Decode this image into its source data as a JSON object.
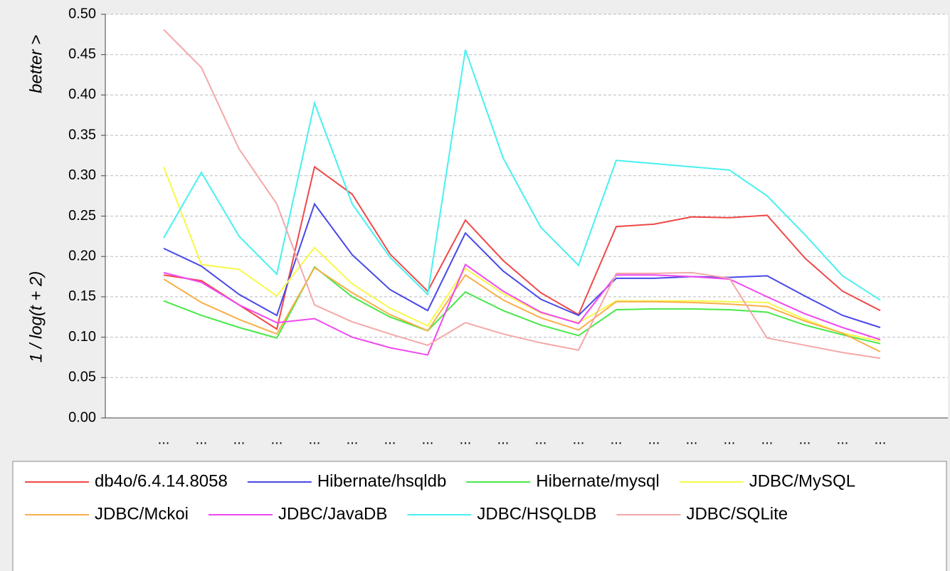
{
  "chart_data": {
    "type": "line",
    "y_label": "1  /  log(t + 2)",
    "annotations": [
      "better >"
    ],
    "categories": [
      "...",
      "...",
      "...",
      "...",
      "...",
      "...",
      "...",
      "...",
      "...",
      "...",
      "...",
      "...",
      "...",
      "...",
      "...",
      "...",
      "...",
      "...",
      "...",
      "..."
    ],
    "series": [
      {
        "name": "db4o/6.4.14.8058",
        "color": "#f04848",
        "values": [
          0.177,
          0.17,
          0.14,
          0.11,
          0.311,
          0.277,
          0.203,
          0.157,
          0.245,
          0.195,
          0.155,
          0.128,
          0.237,
          0.24,
          0.249,
          0.248,
          0.251,
          0.198,
          0.157,
          0.133
        ]
      },
      {
        "name": "Hibernate/hsqldb",
        "color": "#4848e8",
        "values": [
          0.21,
          0.188,
          0.153,
          0.127,
          0.265,
          0.202,
          0.159,
          0.133,
          0.229,
          0.182,
          0.147,
          0.127,
          0.173,
          0.173,
          0.175,
          0.174,
          0.176,
          0.151,
          0.127,
          0.112
        ]
      },
      {
        "name": "Hibernate/mysql",
        "color": "#48e848",
        "values": [
          0.145,
          0.127,
          0.112,
          0.099,
          0.187,
          0.15,
          0.125,
          0.108,
          0.156,
          0.133,
          0.115,
          0.102,
          0.134,
          0.135,
          0.135,
          0.134,
          0.131,
          0.115,
          0.103,
          0.092
        ]
      },
      {
        "name": "JDBC/MySQL",
        "color": "#f8f848",
        "values": [
          0.311,
          0.19,
          0.184,
          0.151,
          0.211,
          0.166,
          0.136,
          0.114,
          0.185,
          0.154,
          0.13,
          0.118,
          0.145,
          0.145,
          0.145,
          0.144,
          0.143,
          0.122,
          0.105,
          0.095
        ]
      },
      {
        "name": "JDBC/Mckoi",
        "color": "#f8b048",
        "values": [
          0.172,
          0.143,
          0.122,
          0.104,
          0.186,
          0.155,
          0.128,
          0.108,
          0.177,
          0.146,
          0.124,
          0.109,
          0.144,
          0.144,
          0.143,
          0.141,
          0.138,
          0.12,
          0.105,
          0.082
        ]
      },
      {
        "name": "JDBC/JavaDB",
        "color": "#f048f0",
        "values": [
          0.18,
          0.168,
          0.14,
          0.118,
          0.123,
          0.1,
          0.087,
          0.078,
          0.19,
          0.157,
          0.131,
          0.117,
          0.177,
          0.177,
          0.175,
          0.172,
          0.15,
          0.129,
          0.112,
          0.097
        ]
      },
      {
        "name": "JDBC/HSQLDB",
        "color": "#48f0f0",
        "values": [
          0.223,
          0.304,
          0.225,
          0.178,
          0.39,
          0.265,
          0.199,
          0.153,
          0.456,
          0.322,
          0.236,
          0.189,
          0.319,
          0.315,
          0.311,
          0.307,
          0.275,
          0.227,
          0.176,
          0.146
        ]
      },
      {
        "name": "JDBC/SQLite",
        "color": "#f4a8a8",
        "values": [
          0.481,
          0.434,
          0.333,
          0.265,
          0.14,
          0.119,
          0.104,
          0.09,
          0.118,
          0.104,
          0.093,
          0.084,
          0.179,
          0.179,
          0.18,
          0.173,
          0.099,
          0.09,
          0.081,
          0.074
        ]
      }
    ],
    "ylim": [
      0,
      0.5
    ],
    "yticks": [
      {
        "value": 0,
        "label": "0.00"
      },
      {
        "value": 0.05,
        "label": "0.05"
      },
      {
        "value": 0.1,
        "label": "0.10"
      },
      {
        "value": 0.15,
        "label": "0.15"
      },
      {
        "value": 0.2,
        "label": "0.20"
      },
      {
        "value": 0.25,
        "label": "0.25"
      },
      {
        "value": 0.3,
        "label": "0.30"
      },
      {
        "value": 0.35,
        "label": "0.35"
      },
      {
        "value": 0.4,
        "label": "0.40"
      },
      {
        "value": 0.45,
        "label": "0.45"
      },
      {
        "value": 0.5,
        "label": "0.50"
      }
    ],
    "grid": true
  }
}
